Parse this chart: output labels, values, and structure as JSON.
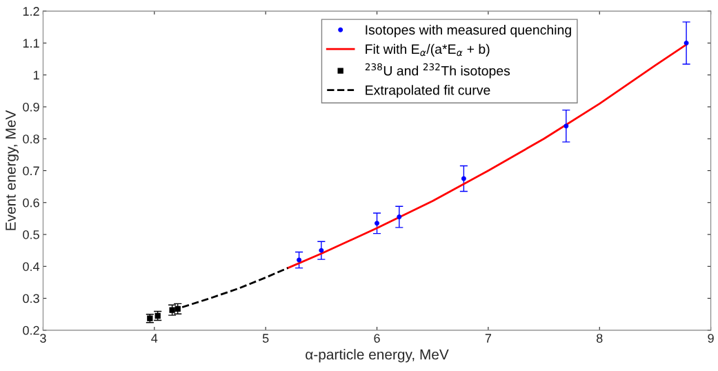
{
  "chart_data": {
    "type": "scatter",
    "xlabel": "α-particle energy, MeV",
    "ylabel": "Event energy, MeV",
    "xlim": [
      3,
      9
    ],
    "xticks": [
      3,
      4,
      5,
      6,
      7,
      8,
      9
    ],
    "ylim": [
      0.2,
      1.2
    ],
    "yticks": [
      0.2,
      0.3,
      0.4,
      0.5,
      0.6,
      0.7,
      0.8,
      0.9,
      1,
      1.1,
      1.2
    ],
    "grid": false,
    "legend": "top right",
    "series": [
      {
        "name": "Isotopes with measured quenching",
        "color": "#0000ff",
        "marker": "circle",
        "x": [
          5.3,
          5.5,
          6.0,
          6.2,
          6.78,
          7.7,
          8.78
        ],
        "values": [
          0.42,
          0.45,
          0.535,
          0.555,
          0.675,
          0.84,
          1.1
        ],
        "errors": [
          0.025,
          0.028,
          0.032,
          0.033,
          0.04,
          0.05,
          0.066
        ]
      },
      {
        "name": "Fit with E$_{α}$/(a*E$_{α}$ + b)",
        "type": "line",
        "color": "#ff0000",
        "line_style": "solid",
        "marker": "none",
        "x": [
          5.2,
          5.5,
          6.0,
          6.5,
          7.0,
          7.5,
          8.0,
          8.5,
          8.78
        ],
        "values": [
          0.395,
          0.44,
          0.52,
          0.605,
          0.7,
          0.8,
          0.91,
          1.03,
          1.095
        ]
      },
      {
        "name": "$^{238}$U and $^{232}$Th isotopes",
        "color": "#000000",
        "marker": "square",
        "x": [
          3.96,
          4.03,
          4.16,
          4.21
        ],
        "values": [
          0.237,
          0.245,
          0.263,
          0.267
        ],
        "errors": [
          0.013,
          0.014,
          0.016,
          0.016
        ]
      },
      {
        "name": "Extrapolated fit curve",
        "type": "line",
        "color": "#000000",
        "line_style": "dashed",
        "marker": "none",
        "x": [
          4.25,
          4.5,
          4.75,
          5.0,
          5.2
        ],
        "values": [
          0.272,
          0.3,
          0.33,
          0.365,
          0.395
        ]
      }
    ]
  }
}
